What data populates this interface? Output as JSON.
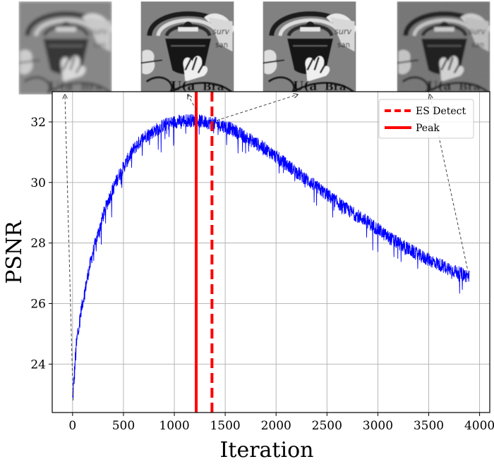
{
  "chart_data": {
    "type": "line",
    "title": "",
    "xlabel": "Iteration",
    "ylabel": "PSNR",
    "xlim": [
      -200,
      4100
    ],
    "ylim": [
      22.4,
      33.0
    ],
    "xticks": [
      0,
      500,
      1000,
      1500,
      2000,
      2500,
      3000,
      3500,
      4000
    ],
    "yticks": [
      24,
      26,
      28,
      30,
      32
    ],
    "grid": true,
    "legend": {
      "placement": "top-right",
      "entries": [
        "ES Detect",
        "Peak"
      ]
    },
    "series": [
      {
        "type": "line",
        "color": "#0000ff",
        "noisy": true,
        "x": [
          0,
          15,
          30,
          50,
          80,
          120,
          160,
          200,
          250,
          300,
          350,
          400,
          450,
          500,
          550,
          600,
          700,
          800,
          900,
          1000,
          1100,
          1200,
          1300,
          1400,
          1500,
          1600,
          1700,
          1800,
          1900,
          2000,
          2100,
          2200,
          2300,
          2400,
          2500,
          2600,
          2700,
          2800,
          2900,
          3000,
          3100,
          3200,
          3300,
          3400,
          3500,
          3600,
          3700,
          3800,
          3900
        ],
        "y": [
          22.8,
          23.5,
          24.3,
          25.0,
          25.7,
          26.4,
          27.1,
          27.7,
          28.3,
          28.9,
          29.4,
          29.8,
          30.2,
          30.5,
          30.8,
          31.1,
          31.5,
          31.7,
          31.9,
          32.0,
          32.05,
          32.05,
          32.0,
          31.95,
          31.85,
          31.7,
          31.5,
          31.3,
          31.1,
          30.85,
          30.6,
          30.35,
          30.1,
          29.85,
          29.6,
          29.35,
          29.1,
          28.9,
          28.7,
          28.45,
          28.2,
          28.0,
          27.8,
          27.6,
          27.45,
          27.3,
          27.15,
          27.0,
          26.9
        ]
      }
    ],
    "vlines": [
      {
        "label": "ES Detect",
        "x": 1370,
        "color": "#ff0000",
        "style": "dashed"
      },
      {
        "label": "Peak",
        "x": 1215,
        "color": "#ff0000",
        "style": "solid"
      }
    ],
    "annotations": [
      {
        "kind": "thumbnail-arrow",
        "image": "grayscale-graffiti-crop-blurred",
        "from_x": 5,
        "from_y": 22.8
      },
      {
        "kind": "thumbnail-arrow",
        "image": "grayscale-graffiti-crop-sharp",
        "from_x": 1215,
        "from_y": 32.4
      },
      {
        "kind": "thumbnail-arrow",
        "image": "grayscale-graffiti-crop-sharp",
        "from_x": 1370,
        "from_y": 32.0
      },
      {
        "kind": "thumbnail-arrow",
        "image": "grayscale-graffiti-crop-noisy",
        "from_x": 3890,
        "from_y": 27.0
      }
    ]
  }
}
